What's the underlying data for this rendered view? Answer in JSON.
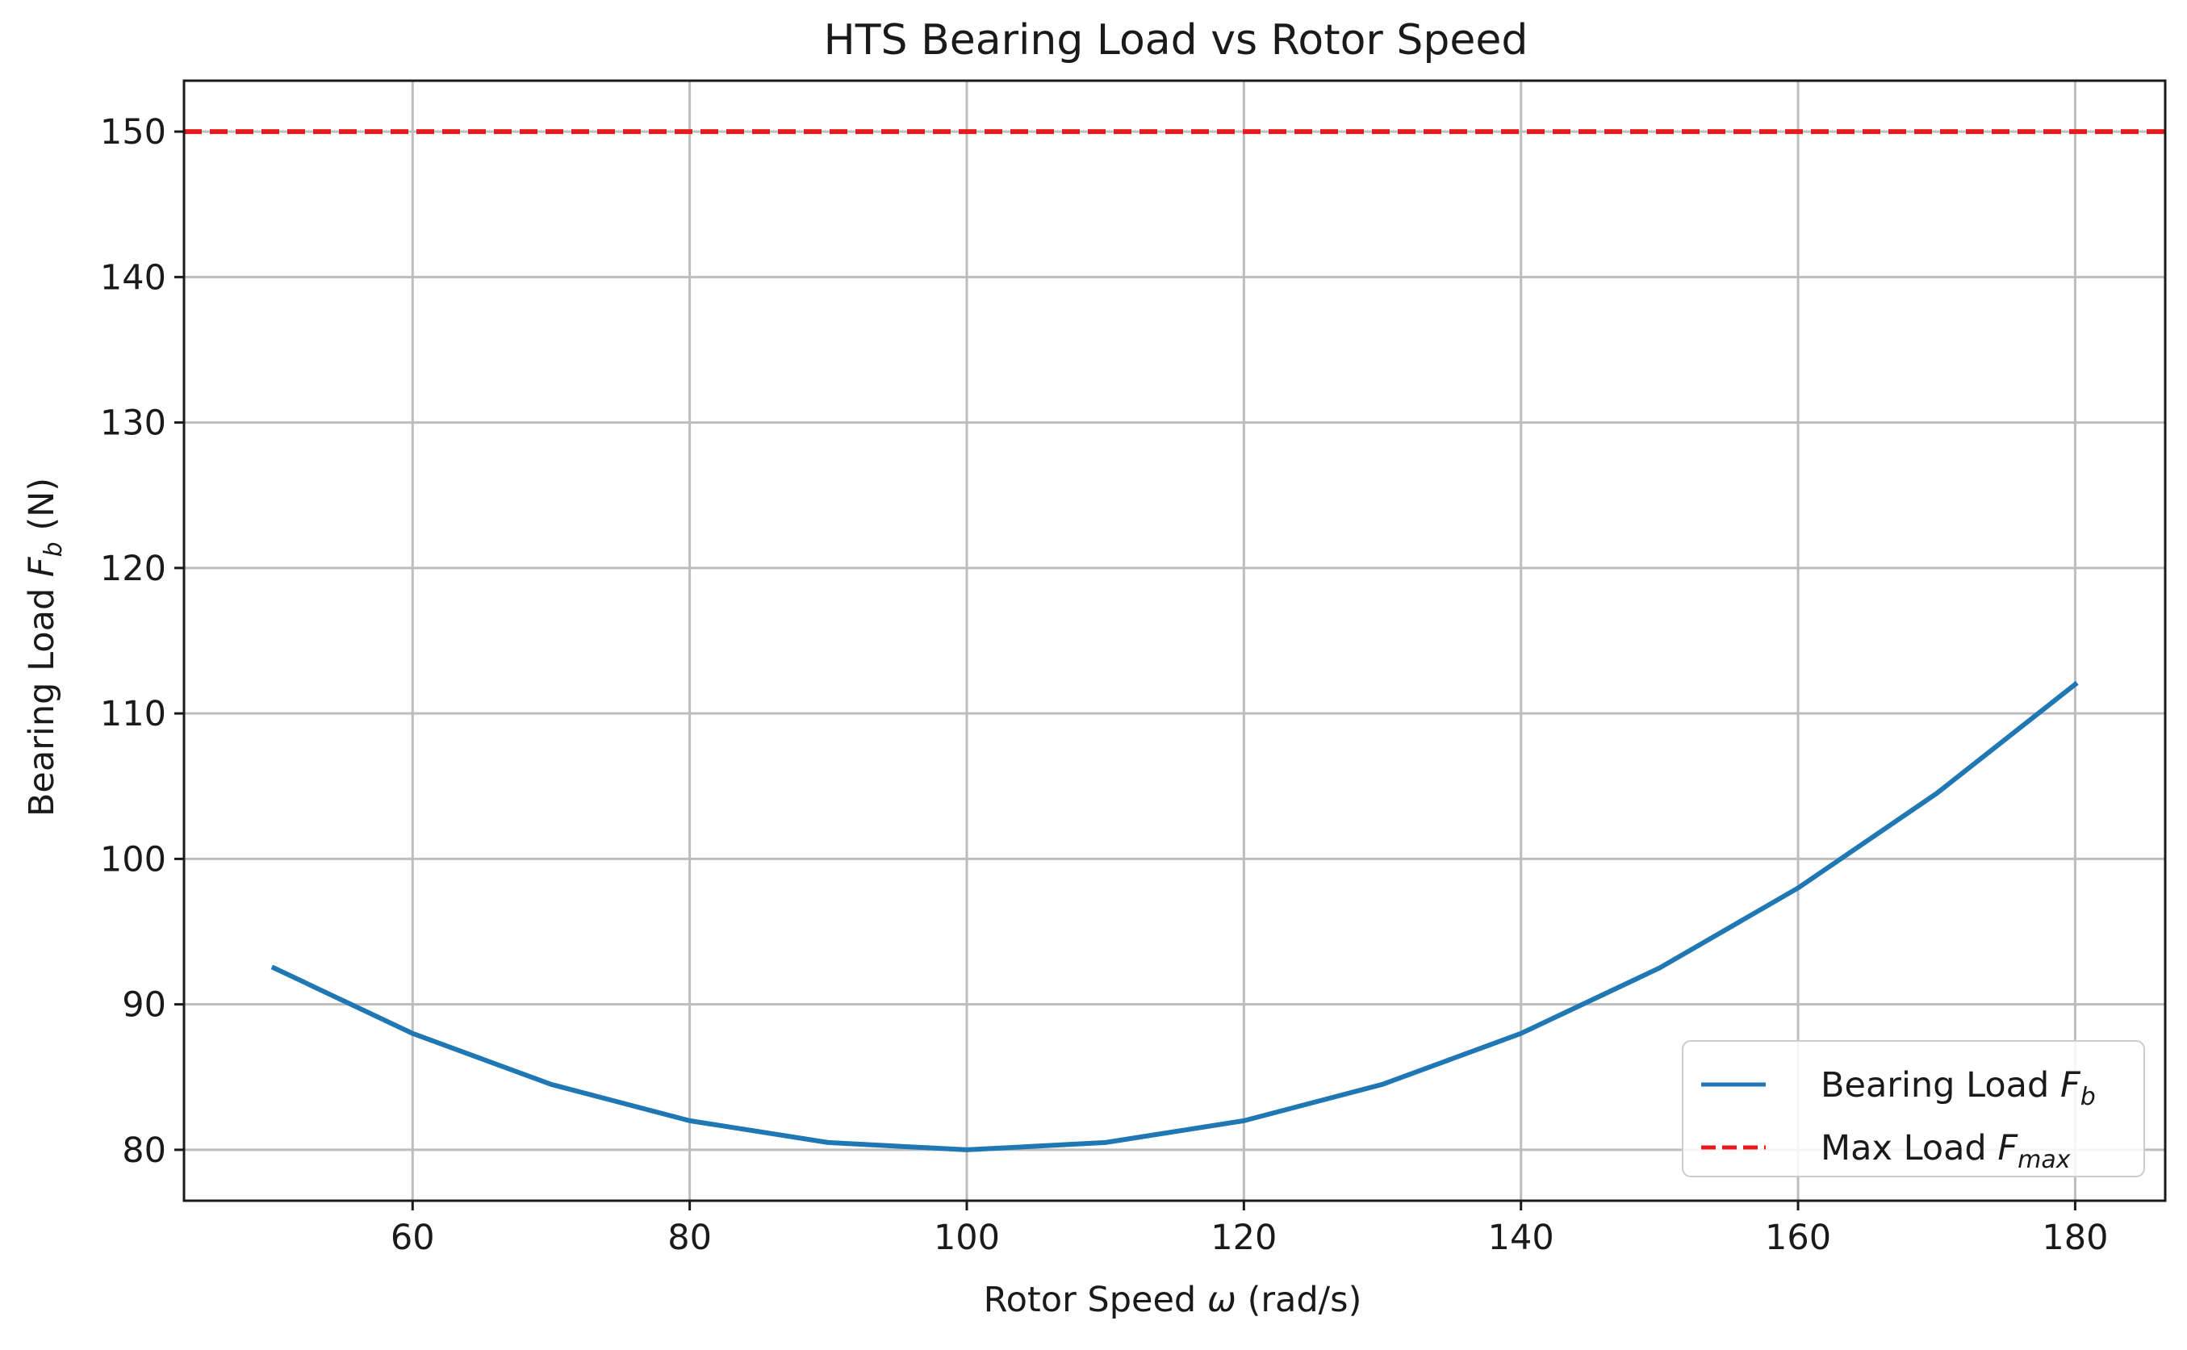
{
  "chart_data": {
    "type": "line",
    "title": "HTS Bearing Load vs Rotor Speed",
    "xlabel": {
      "main": "Rotor Speed ",
      "symbol": "ω",
      "unit": " (rad/s)"
    },
    "ylabel": {
      "main": "Bearing Load ",
      "symbol": "F",
      "sub": "b",
      "unit": " (N)"
    },
    "xlim": [
      43.5,
      186.5
    ],
    "ylim": [
      76.5,
      153.5
    ],
    "xticks": [
      60,
      80,
      100,
      120,
      140,
      160,
      180
    ],
    "yticks": [
      80,
      90,
      100,
      110,
      120,
      130,
      140,
      150
    ],
    "grid": true,
    "legend_position": "lower-right",
    "series": [
      {
        "name": "Bearing Load F_b",
        "legend_main": "Bearing Load ",
        "legend_symbol": "F",
        "legend_sub": "b",
        "style": "solid",
        "color": "#1f77b4",
        "x": [
          50,
          60,
          70,
          80,
          90,
          100,
          110,
          120,
          130,
          140,
          150,
          160,
          170,
          180
        ],
        "y": [
          92.5,
          88.0,
          84.5,
          82.0,
          80.5,
          80.0,
          80.5,
          82.0,
          84.5,
          88.0,
          92.5,
          98.0,
          104.5,
          112.0
        ]
      },
      {
        "name": "Max Load F_max",
        "legend_main": "Max Load ",
        "legend_symbol": "F",
        "legend_sub": "max",
        "style": "dashed",
        "color": "#e41a1c",
        "y_constant": 150
      }
    ]
  }
}
